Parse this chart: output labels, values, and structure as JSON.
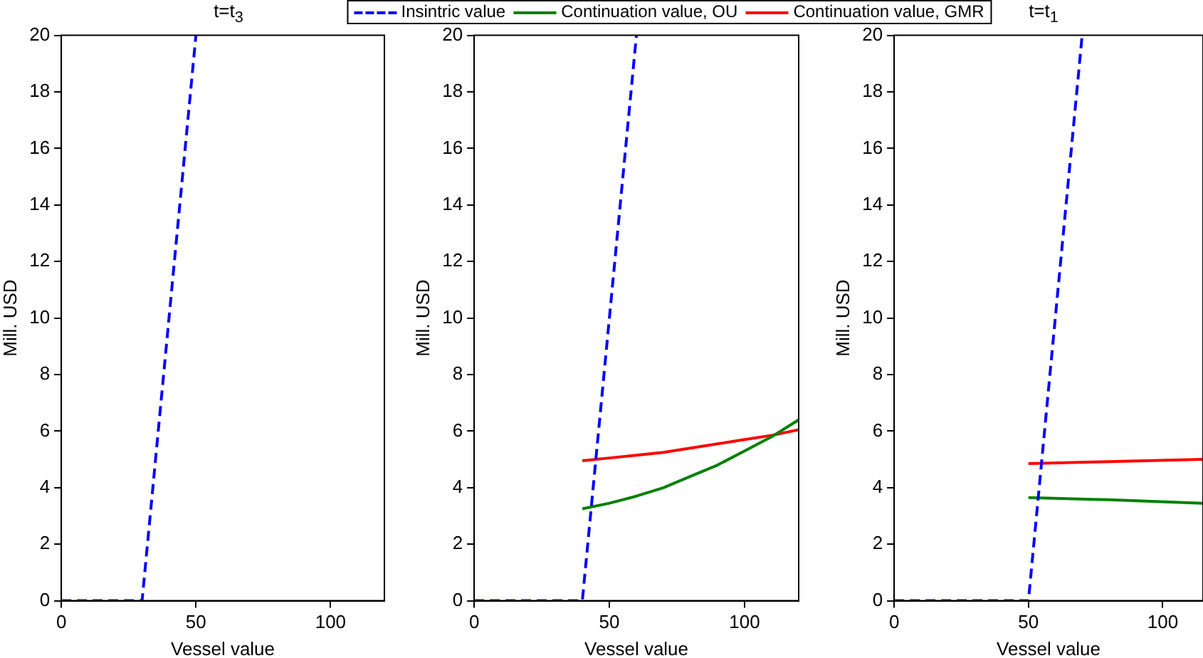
{
  "chart_data": [
    {
      "type": "line",
      "title": "t=t$_{3}$",
      "xlabel": "Vessel value",
      "ylabel": "Mill. USD",
      "xlim": [
        0,
        120
      ],
      "xticks": [
        0,
        50,
        100
      ],
      "ylim": [
        0,
        20
      ],
      "yticks": [
        0,
        2,
        4,
        6,
        8,
        10,
        12,
        14,
        16,
        18,
        20
      ],
      "grid": false,
      "legend": "top",
      "marker": "none",
      "series": [
        {
          "name": "Insintric value",
          "color": "#0000ff",
          "line_style": "dashed",
          "x": [
            0,
            30,
            50
          ],
          "values": [
            0,
            0,
            20
          ]
        }
      ]
    },
    {
      "type": "line",
      "xlabel": "Vessel value",
      "ylabel": "Mill. USD",
      "xlim": [
        0,
        120
      ],
      "xticks": [
        0,
        50,
        100
      ],
      "ylim": [
        0,
        20
      ],
      "yticks": [
        0,
        2,
        4,
        6,
        8,
        10,
        12,
        14,
        16,
        18,
        20
      ],
      "grid": false,
      "legend": "top",
      "marker": "none",
      "series": [
        {
          "name": "Insintric value",
          "color": "#0000ff",
          "line_style": "dashed",
          "x": [
            0,
            40,
            60
          ],
          "values": [
            0,
            0,
            20
          ]
        },
        {
          "name": "Continuation value, OU",
          "color": "#008000",
          "line_style": "solid",
          "x": [
            40,
            50,
            60,
            70,
            80,
            90,
            100,
            110,
            120
          ],
          "values": [
            3.25,
            3.45,
            3.7,
            4.0,
            4.4,
            4.8,
            5.3,
            5.8,
            6.4
          ]
        },
        {
          "name": "Continuation value, GMR",
          "color": "#ff0000",
          "line_style": "solid",
          "x": [
            40,
            50,
            60,
            70,
            80,
            90,
            100,
            110,
            120
          ],
          "values": [
            4.95,
            5.05,
            5.15,
            5.25,
            5.4,
            5.55,
            5.7,
            5.85,
            6.05
          ]
        }
      ]
    },
    {
      "type": "line",
      "title": "t=t$_{1}$",
      "xlabel": "Vessel value",
      "ylabel": "Mill. USD",
      "xlim": [
        0,
        115
      ],
      "xticks": [
        0,
        50,
        100
      ],
      "ylim": [
        0,
        20
      ],
      "yticks": [
        0,
        2,
        4,
        6,
        8,
        10,
        12,
        14,
        16,
        18,
        20
      ],
      "grid": false,
      "legend": "top",
      "marker": "none",
      "series": [
        {
          "name": "Insintric value",
          "color": "#0000ff",
          "line_style": "dashed",
          "x": [
            0,
            50,
            70
          ],
          "values": [
            0,
            0,
            20
          ]
        },
        {
          "name": "Continuation value, OU",
          "color": "#008000",
          "line_style": "solid",
          "x": [
            50,
            80,
            115
          ],
          "values": [
            3.65,
            3.57,
            3.45
          ]
        },
        {
          "name": "Continuation value, GMR",
          "color": "#ff0000",
          "line_style": "solid",
          "x": [
            50,
            80,
            115
          ],
          "values": [
            4.85,
            4.92,
            5.0
          ]
        }
      ]
    }
  ]
}
